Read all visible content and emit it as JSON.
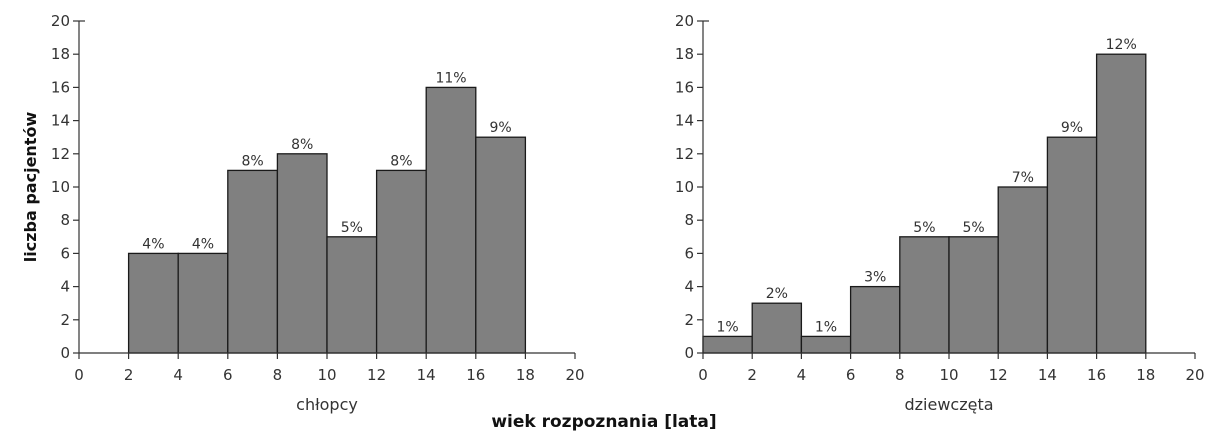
{
  "figure": {
    "ylabel": "liczba pacjentów",
    "shared_xlabel": "wiek rozpoznania [lata]"
  },
  "chart_data": [
    {
      "type": "bar",
      "histogram": true,
      "xlabel": "chłopcy",
      "ylabel": "liczba pacjentów",
      "xlim": [
        0,
        20
      ],
      "ylim": [
        0,
        20
      ],
      "x_ticks": [
        0,
        2,
        4,
        6,
        8,
        10,
        12,
        14,
        16,
        18,
        20
      ],
      "y_ticks": [
        0,
        2,
        4,
        6,
        8,
        10,
        12,
        14,
        16,
        18,
        20
      ],
      "bins": [
        [
          2,
          4
        ],
        [
          4,
          6
        ],
        [
          6,
          8
        ],
        [
          8,
          10
        ],
        [
          10,
          12
        ],
        [
          12,
          14
        ],
        [
          14,
          16
        ],
        [
          16,
          18
        ]
      ],
      "values": [
        6,
        6,
        11,
        12,
        7,
        11,
        16,
        13
      ],
      "bar_labels": [
        "4%",
        "4%",
        "8%",
        "8%",
        "5%",
        "8%",
        "11%",
        "9%"
      ],
      "bar_color": "#808080",
      "grid": false
    },
    {
      "type": "bar",
      "histogram": true,
      "xlabel": "dziewczęta",
      "ylabel": "",
      "xlim": [
        0,
        20
      ],
      "ylim": [
        0,
        20
      ],
      "x_ticks": [
        0,
        2,
        4,
        6,
        8,
        10,
        12,
        14,
        16,
        18,
        20
      ],
      "y_ticks": [
        0,
        2,
        4,
        6,
        8,
        10,
        12,
        14,
        16,
        18,
        20
      ],
      "bins": [
        [
          0,
          2
        ],
        [
          2,
          4
        ],
        [
          4,
          6
        ],
        [
          6,
          8
        ],
        [
          8,
          10
        ],
        [
          10,
          12
        ],
        [
          12,
          14
        ],
        [
          14,
          16
        ],
        [
          16,
          18
        ]
      ],
      "values": [
        1,
        3,
        1,
        4,
        7,
        7,
        10,
        13,
        18
      ],
      "bar_labels": [
        "1%",
        "2%",
        "1%",
        "3%",
        "5%",
        "5%",
        "7%",
        "9%",
        "12%"
      ],
      "bar_color": "#808080",
      "grid": false
    }
  ]
}
